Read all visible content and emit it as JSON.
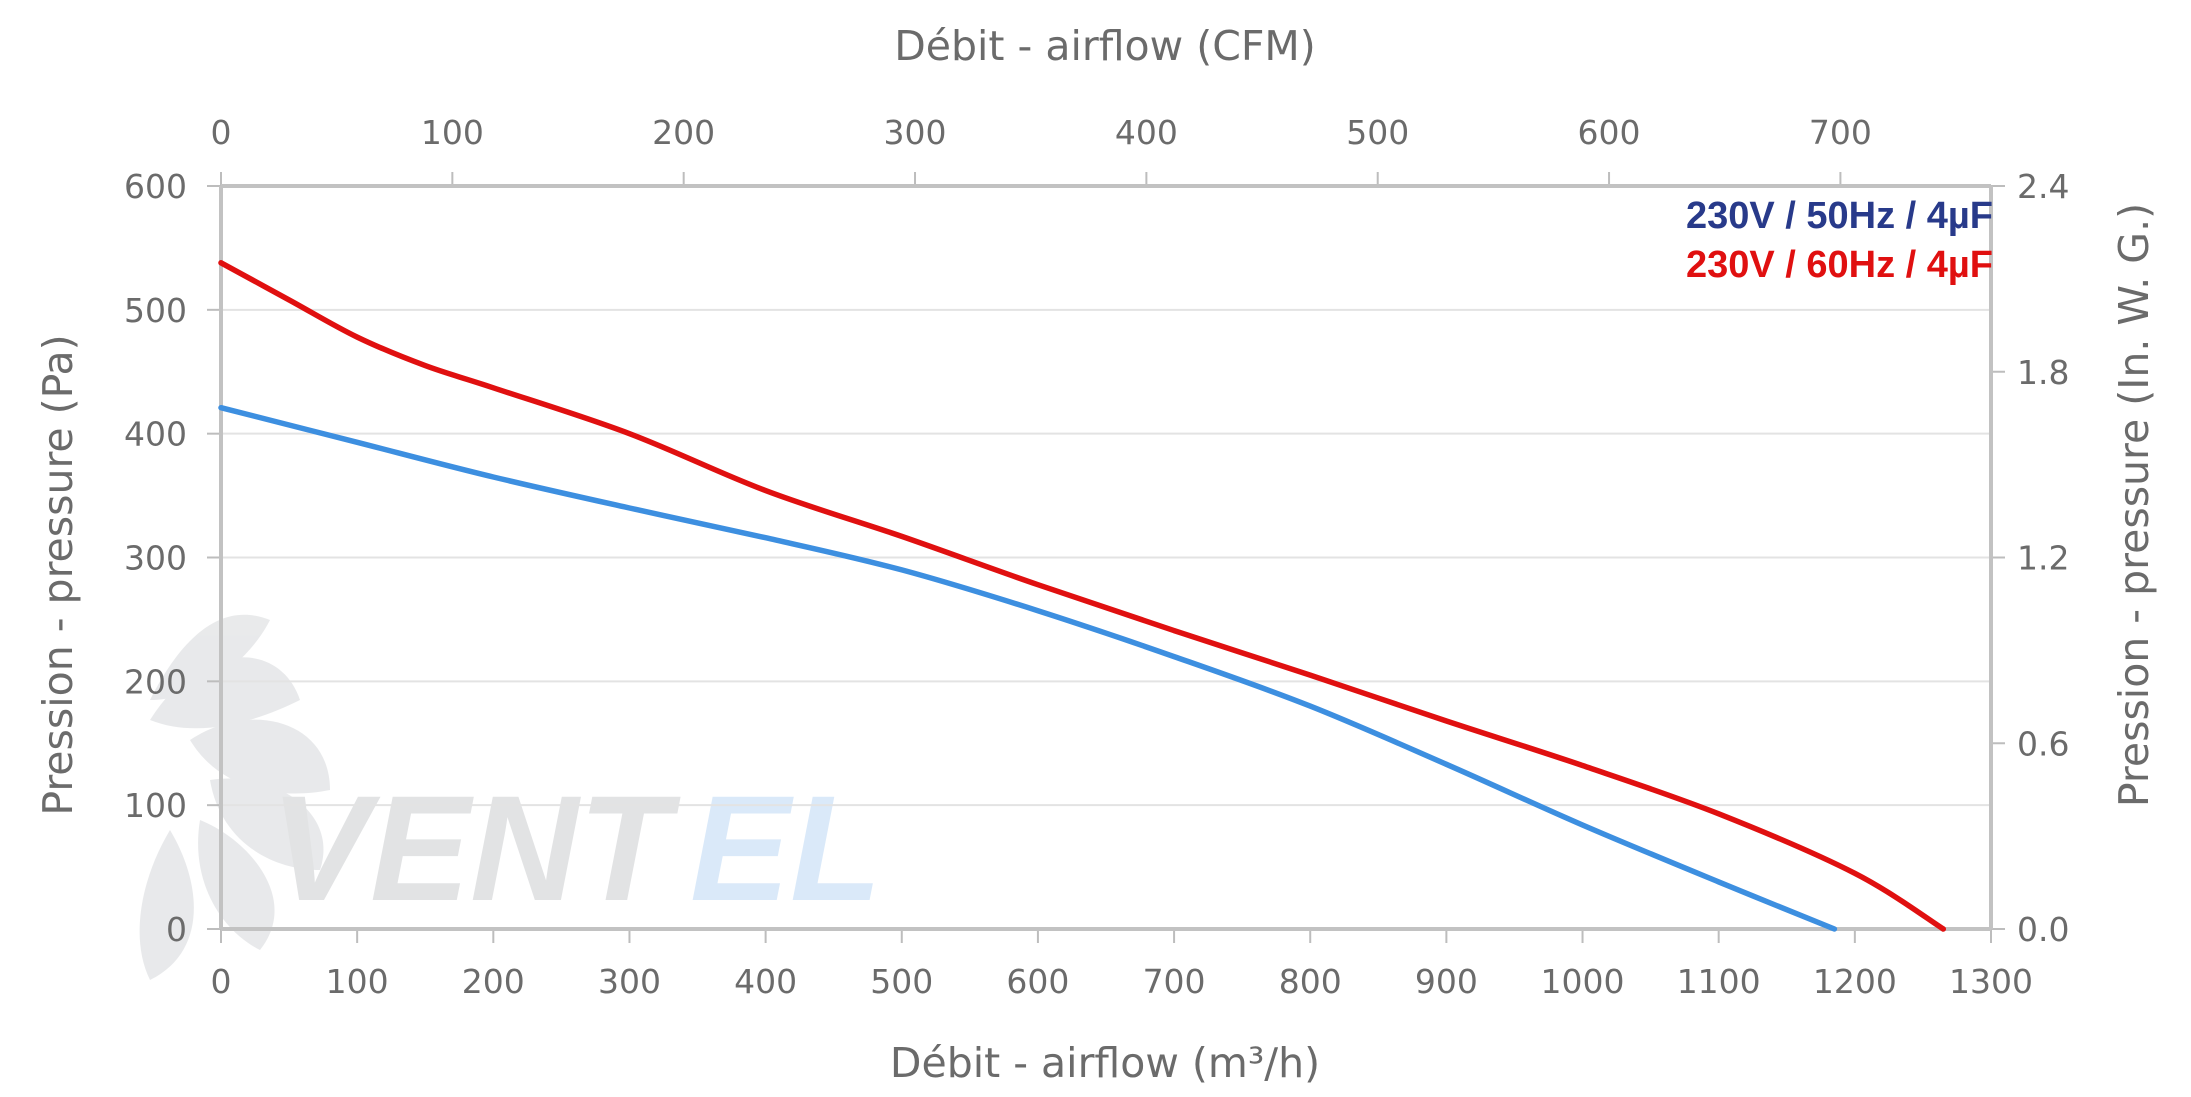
{
  "chart_data": {
    "type": "line",
    "bottom_axis": {
      "label": "Débit - airflow (m³/h)",
      "range": [
        0,
        1300
      ],
      "ticks": [
        "0",
        "100",
        "200",
        "300",
        "400",
        "500",
        "600",
        "700",
        "800",
        "900",
        "1000",
        "1100",
        "1200",
        "1300"
      ]
    },
    "top_axis": {
      "label": "Débit - airflow (CFM)",
      "range": [
        0,
        765.1
      ],
      "ticks": [
        "0",
        "100",
        "200",
        "300",
        "400",
        "500",
        "600",
        "700"
      ]
    },
    "left_axis": {
      "label": "Pression - pressure (Pa)",
      "range": [
        0,
        600
      ],
      "ticks": [
        "0",
        "100",
        "200",
        "300",
        "400",
        "500",
        "600"
      ]
    },
    "right_axis": {
      "label": "Pression - pressure (In. W. G.)",
      "range": [
        0,
        2.4
      ],
      "ticks": [
        "0.0",
        "0.6",
        "1.2",
        "1.8",
        "2.4"
      ]
    },
    "grid": true,
    "legend_position": "top-right",
    "series": [
      {
        "name": "230V / 50Hz / 4µF",
        "color": "#3d8fe0",
        "legend_color": "#283a8a",
        "x": [
          0,
          100,
          200,
          300,
          400,
          500,
          600,
          700,
          800,
          900,
          1000,
          1100,
          1185
        ],
        "y": [
          421,
          393,
          365,
          340,
          316,
          290,
          257,
          220,
          180,
          133,
          84,
          38,
          0
        ]
      },
      {
        "name": "230V / 60Hz / 4µF",
        "color": "#e01010",
        "legend_color": "#e01010",
        "x": [
          0,
          50,
          100,
          150,
          200,
          300,
          400,
          500,
          600,
          700,
          800,
          900,
          1000,
          1100,
          1200,
          1265
        ],
        "y": [
          538,
          508,
          478,
          455,
          437,
          400,
          354,
          317,
          278,
          241,
          205,
          168,
          132,
          93,
          45,
          0
        ]
      }
    ]
  },
  "watermark": {
    "logo_text_a": "VENT",
    "logo_text_b": "EL"
  }
}
